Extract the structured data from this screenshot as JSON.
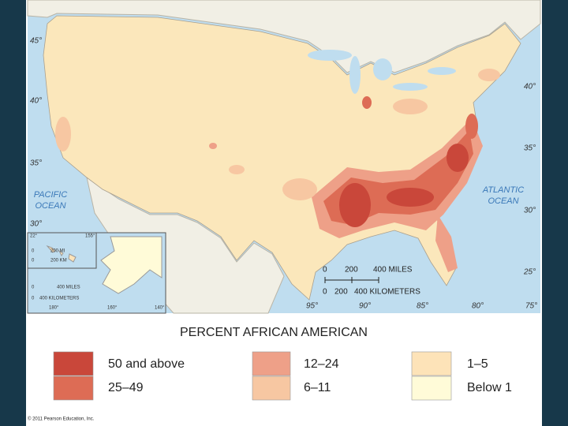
{
  "map": {
    "latitude_labels_left": [
      "45°",
      "40°",
      "35°",
      "30°"
    ],
    "latitude_labels_right": [
      "40°",
      "35°",
      "30°",
      "25°"
    ],
    "longitude_labels": [
      "95°",
      "90°",
      "85°",
      "80°",
      "75°"
    ],
    "pacific_ocean": [
      "PACIFIC",
      "OCEAN"
    ],
    "atlantic_ocean": [
      "ATLANTIC",
      "OCEAN"
    ],
    "scale": {
      "miles": [
        "0",
        "200",
        "400 MILES"
      ],
      "kilometers": [
        "0",
        "200",
        "400 KILOMETERS"
      ]
    },
    "inset": {
      "hawaii": [
        "22°",
        "155°",
        "0",
        "200 MI",
        "0",
        "200 KM"
      ],
      "alaska": [
        "0",
        "400 MILES",
        "0",
        "400 KILOMETERS",
        "180°",
        "160°",
        "140°"
      ]
    }
  },
  "legend": {
    "title": "PERCENT AFRICAN AMERICAN",
    "items": [
      {
        "label": "50 and above",
        "color": "#c9473a"
      },
      {
        "label": "25–49",
        "color": "#dd6c55"
      },
      {
        "label": "12–24",
        "color": "#eea088"
      },
      {
        "label": "6–11",
        "color": "#f7c7a2"
      },
      {
        "label": "1–5",
        "color": "#fde3b8"
      },
      {
        "label": "Below 1",
        "color": "#fffbd8"
      }
    ]
  },
  "copyright": "© 2011 Pearson Education, Inc."
}
